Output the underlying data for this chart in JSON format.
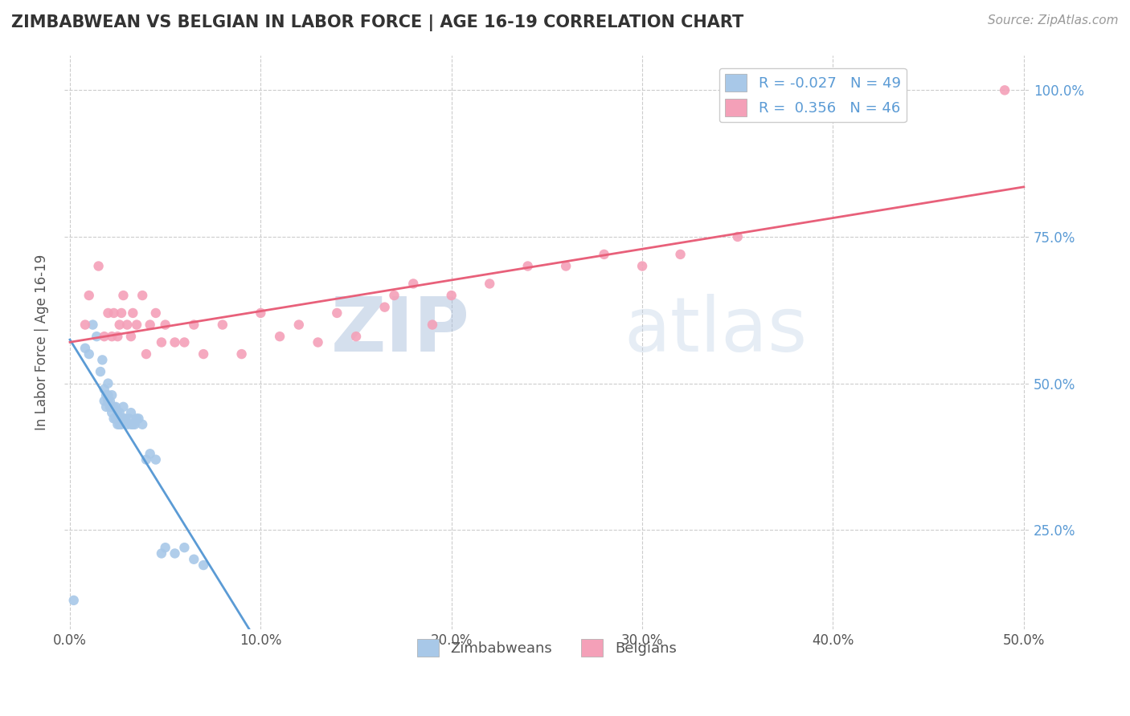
{
  "title": "ZIMBABWEAN VS BELGIAN IN LABOR FORCE | AGE 16-19 CORRELATION CHART",
  "source_text": "Source: ZipAtlas.com",
  "ylabel": "In Labor Force | Age 16-19",
  "xlim": [
    -0.003,
    0.503
  ],
  "ylim": [
    0.08,
    1.06
  ],
  "xtick_labels": [
    "0.0%",
    "10.0%",
    "20.0%",
    "30.0%",
    "40.0%",
    "50.0%"
  ],
  "xtick_vals": [
    0.0,
    0.1,
    0.2,
    0.3,
    0.4,
    0.5
  ],
  "ytick_labels": [
    "25.0%",
    "50.0%",
    "75.0%",
    "100.0%"
  ],
  "ytick_vals": [
    0.25,
    0.5,
    0.75,
    1.0
  ],
  "watermark_zip": "ZIP",
  "watermark_atlas": "atlas",
  "zim_color": "#a8c8e8",
  "bel_color": "#f4a0b8",
  "zim_line_color": "#5b9bd5",
  "bel_line_color": "#e8607a",
  "ytick_color": "#5b9bd5",
  "background_color": "#ffffff",
  "grid_color": "#cccccc",
  "legend_label_color": "#5b9bd5",
  "zim_x": [
    0.002,
    0.008,
    0.01,
    0.012,
    0.014,
    0.016,
    0.017,
    0.018,
    0.018,
    0.019,
    0.019,
    0.02,
    0.02,
    0.02,
    0.021,
    0.021,
    0.022,
    0.022,
    0.022,
    0.023,
    0.023,
    0.024,
    0.024,
    0.025,
    0.025,
    0.026,
    0.026,
    0.027,
    0.028,
    0.028,
    0.029,
    0.03,
    0.031,
    0.032,
    0.032,
    0.033,
    0.034,
    0.035,
    0.036,
    0.038,
    0.04,
    0.042,
    0.045,
    0.048,
    0.05,
    0.055,
    0.06,
    0.065,
    0.07
  ],
  "zim_y": [
    0.13,
    0.56,
    0.55,
    0.6,
    0.58,
    0.52,
    0.54,
    0.47,
    0.49,
    0.46,
    0.48,
    0.47,
    0.48,
    0.5,
    0.46,
    0.47,
    0.45,
    0.46,
    0.48,
    0.44,
    0.46,
    0.44,
    0.46,
    0.43,
    0.45,
    0.43,
    0.45,
    0.43,
    0.44,
    0.46,
    0.44,
    0.43,
    0.44,
    0.43,
    0.45,
    0.43,
    0.43,
    0.44,
    0.44,
    0.43,
    0.37,
    0.38,
    0.37,
    0.21,
    0.22,
    0.21,
    0.22,
    0.2,
    0.19
  ],
  "bel_x": [
    0.008,
    0.01,
    0.015,
    0.018,
    0.02,
    0.022,
    0.023,
    0.025,
    0.026,
    0.027,
    0.028,
    0.03,
    0.032,
    0.033,
    0.035,
    0.038,
    0.04,
    0.042,
    0.045,
    0.048,
    0.05,
    0.055,
    0.06,
    0.065,
    0.07,
    0.08,
    0.09,
    0.1,
    0.11,
    0.12,
    0.13,
    0.14,
    0.15,
    0.165,
    0.17,
    0.18,
    0.19,
    0.2,
    0.22,
    0.24,
    0.26,
    0.28,
    0.3,
    0.32,
    0.35,
    0.49
  ],
  "bel_y": [
    0.6,
    0.65,
    0.7,
    0.58,
    0.62,
    0.58,
    0.62,
    0.58,
    0.6,
    0.62,
    0.65,
    0.6,
    0.58,
    0.62,
    0.6,
    0.65,
    0.55,
    0.6,
    0.62,
    0.57,
    0.6,
    0.57,
    0.57,
    0.6,
    0.55,
    0.6,
    0.55,
    0.62,
    0.58,
    0.6,
    0.57,
    0.62,
    0.58,
    0.63,
    0.65,
    0.67,
    0.6,
    0.65,
    0.67,
    0.7,
    0.7,
    0.72,
    0.7,
    0.72,
    0.75,
    1.0
  ]
}
